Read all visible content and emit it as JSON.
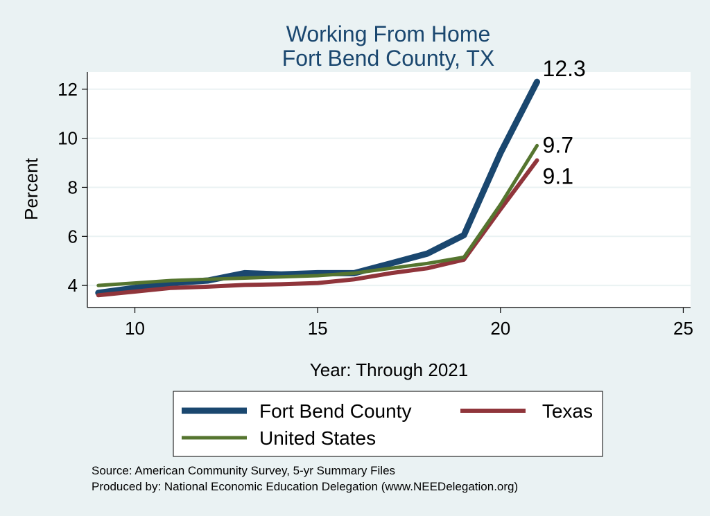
{
  "chart_data": {
    "type": "line",
    "title": [
      "Working From Home",
      "Fort Bend County, TX"
    ],
    "xlabel": "Year: Through 2021",
    "ylabel": "Percent",
    "xlim": [
      8.7,
      25.2
    ],
    "ylim": [
      3.1,
      12.7
    ],
    "xticks": [
      10,
      15,
      20,
      25
    ],
    "yticks": [
      4,
      6,
      8,
      10,
      12
    ],
    "grid": true,
    "legend_placement": "bottom",
    "series": [
      {
        "name": "Fort Bend County",
        "color": "#1a476f",
        "x": [
          9,
          10,
          11,
          12,
          13,
          14,
          15,
          16,
          17,
          18,
          19,
          20,
          21
        ],
        "values": [
          3.7,
          3.9,
          4.1,
          4.2,
          4.5,
          4.45,
          4.5,
          4.5,
          4.9,
          5.3,
          6.05,
          9.4,
          12.3
        ],
        "end_label": "12.3"
      },
      {
        "name": "Texas",
        "color": "#90353b",
        "x": [
          9,
          10,
          11,
          12,
          13,
          14,
          15,
          16,
          17,
          18,
          19,
          20,
          21
        ],
        "values": [
          3.6,
          3.75,
          3.9,
          3.95,
          4.02,
          4.05,
          4.1,
          4.25,
          4.5,
          4.7,
          5.05,
          7.1,
          9.1
        ],
        "end_label": "9.1"
      },
      {
        "name": "United States",
        "color": "#55752f",
        "x": [
          9,
          10,
          11,
          12,
          13,
          14,
          15,
          16,
          17,
          18,
          19,
          20,
          21
        ],
        "values": [
          4.0,
          4.1,
          4.2,
          4.25,
          4.3,
          4.35,
          4.4,
          4.5,
          4.7,
          4.9,
          5.15,
          7.3,
          9.7
        ],
        "end_label": "9.7"
      }
    ],
    "legend": [
      {
        "label": "Fort Bend County",
        "series": 0
      },
      {
        "label": "Texas",
        "series": 1
      },
      {
        "label": "United States",
        "series": 2
      }
    ],
    "notes": [
      "Source: American Community Survey, 5-yr Summary Files",
      "Produced by: National Economic Education Delegation (www.NEEDelegation.org)"
    ]
  }
}
